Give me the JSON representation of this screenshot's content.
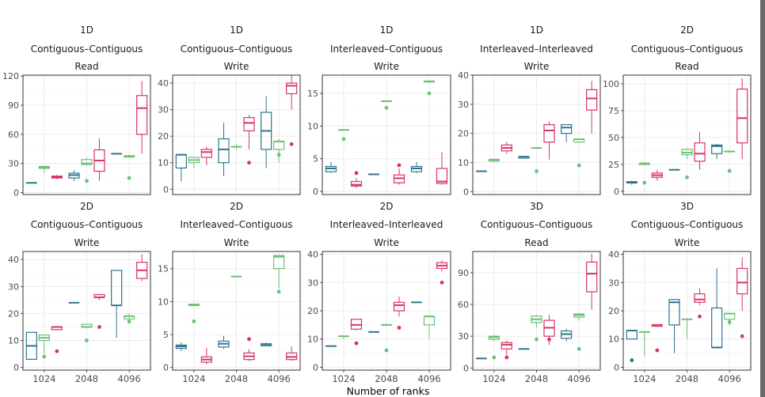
{
  "colors": {
    "blue": "#2e7590",
    "green": "#6cc073",
    "pink": "#d83465",
    "grid": "#ebebeb",
    "frame": "#333333",
    "tick": "#4d4d4d"
  },
  "xlabel": "Number of ranks",
  "chart_data": [
    {
      "type": "box",
      "title": [
        "1D",
        "Contiguous–Contiguous",
        "Read"
      ],
      "categories": [
        "1024",
        "2048",
        "4096"
      ],
      "ylim": [
        -2,
        121
      ],
      "yticks": [
        0,
        30,
        60,
        90,
        120
      ],
      "series": [
        {
          "color": "blue",
          "boxes": [
            [
              10,
              10,
              10,
              10,
              10,
              null
            ],
            [
              12,
              15,
              18,
              20,
              23,
              null
            ],
            [
              40,
              40,
              40,
              40,
              40,
              null
            ]
          ]
        },
        {
          "color": "green",
          "boxes": [
            [
              20,
              25,
              26,
              27,
              27,
              null
            ],
            [
              28,
              29,
              30,
              34,
              36,
              12
            ],
            [
              37,
              37,
              37,
              38,
              38,
              15
            ]
          ]
        },
        {
          "color": "pink",
          "boxes": [
            [
              14,
              15,
              16,
              17,
              18,
              null
            ],
            [
              12,
              22,
              33,
              44,
              56,
              null
            ],
            [
              40,
              60,
              87,
              100,
              115,
              null
            ]
          ]
        }
      ]
    },
    {
      "type": "box",
      "title": [
        "1D",
        "Contiguous–Contiguous",
        "Write"
      ],
      "categories": [
        "1024",
        "2048",
        "4096"
      ],
      "ylim": [
        -2,
        43
      ],
      "yticks": [
        0,
        10,
        20,
        30,
        40
      ],
      "series": [
        {
          "color": "blue",
          "boxes": [
            [
              3,
              8,
              13,
              13,
              13,
              null
            ],
            [
              5,
              10,
              15,
              19,
              25,
              null
            ],
            [
              8,
              15,
              22,
              29,
              35,
              null
            ]
          ]
        },
        {
          "color": "green",
          "boxes": [
            [
              8,
              10,
              11,
              12,
              12,
              null
            ],
            [
              15,
              16,
              16,
              16,
              17,
              null
            ],
            [
              10,
              15,
              18,
              18,
              19,
              13
            ]
          ]
        },
        {
          "color": "pink",
          "boxes": [
            [
              9,
              12,
              14,
              15,
              16,
              null
            ],
            [
              15,
              22,
              25,
              27,
              28,
              10
            ],
            [
              30,
              36,
              39,
              40,
              43,
              17
            ]
          ]
        }
      ]
    },
    {
      "type": "box",
      "title": [
        "1D",
        "Interleaved–Contiguous",
        "Write"
      ],
      "categories": [
        "1024",
        "2048",
        "4096"
      ],
      "ylim": [
        -0.5,
        17.8
      ],
      "yticks": [
        0,
        5,
        10,
        15
      ],
      "series": [
        {
          "color": "blue",
          "boxes": [
            [
              2.8,
              3,
              3.5,
              3.8,
              4.5,
              null
            ],
            [
              2.6,
              2.6,
              2.6,
              2.6,
              2.6,
              null
            ],
            [
              2.8,
              3,
              3.5,
              3.8,
              4.5,
              null
            ]
          ]
        },
        {
          "color": "green",
          "boxes": [
            [
              9.4,
              9.4,
              9.4,
              9.4,
              9.4,
              8
            ],
            [
              13.8,
              13.8,
              13.8,
              13.8,
              13.8,
              12.8
            ],
            [
              16.5,
              16.8,
              16.8,
              16.9,
              17,
              15
            ]
          ]
        },
        {
          "color": "pink",
          "boxes": [
            [
              0.5,
              0.8,
              1,
              1.5,
              2,
              2.8
            ],
            [
              1,
              1.3,
              2,
              2.5,
              3.5,
              4
            ],
            [
              1,
              1.2,
              1.5,
              3.5,
              6,
              null
            ]
          ]
        }
      ]
    },
    {
      "type": "box",
      "title": [
        "1D",
        "Interleaved–Interleaved",
        "Write"
      ],
      "categories": [
        "1024",
        "2048",
        "4096"
      ],
      "ylim": [
        -1,
        40
      ],
      "yticks": [
        0,
        10,
        20,
        30,
        40
      ],
      "series": [
        {
          "color": "blue",
          "boxes": [
            [
              7,
              7,
              7,
              7,
              7,
              null
            ],
            [
              11.5,
              11.5,
              12,
              12,
              12,
              null
            ],
            [
              17,
              20,
              22,
              23,
              23,
              null
            ]
          ]
        },
        {
          "color": "green",
          "boxes": [
            [
              10,
              10.5,
              11,
              11,
              11,
              null
            ],
            [
              15,
              15,
              15,
              15,
              15,
              7
            ],
            [
              17,
              17,
              18,
              18,
              18,
              9
            ]
          ]
        },
        {
          "color": "pink",
          "boxes": [
            [
              13,
              14,
              15,
              16,
              17,
              null
            ],
            [
              11,
              17,
              21,
              23,
              24,
              null
            ],
            [
              20,
              28,
              32,
              35,
              38,
              null
            ]
          ]
        }
      ]
    },
    {
      "type": "box",
      "title": [
        "2D",
        "Contiguous–Contiguous",
        "Read"
      ],
      "categories": [
        "1024",
        "2048",
        "4096"
      ],
      "ylim": [
        -3,
        108
      ],
      "yticks": [
        0,
        25,
        50,
        75,
        100
      ],
      "series": [
        {
          "color": "blue",
          "boxes": [
            [
              6,
              8,
              8,
              9,
              10,
              null
            ],
            [
              20,
              20,
              20,
              20,
              20,
              null
            ],
            [
              30,
              35,
              42,
              43,
              44,
              null
            ]
          ]
        },
        {
          "color": "green",
          "boxes": [
            [
              24,
              25,
              26,
              26,
              27,
              8
            ],
            [
              30,
              34,
              36,
              39,
              40,
              13
            ],
            [
              36,
              37,
              37,
              37,
              38,
              19
            ]
          ]
        },
        {
          "color": "pink",
          "boxes": [
            [
              10,
              13,
              15,
              17,
              20,
              null
            ],
            [
              20,
              28,
              35,
              45,
              55,
              null
            ],
            [
              30,
              45,
              68,
              95,
              105,
              null
            ]
          ]
        }
      ]
    },
    {
      "type": "box",
      "title": [
        "2D",
        "Contiguous–Contiguous",
        "Write"
      ],
      "categories": [
        "1024",
        "2048",
        "4096"
      ],
      "ylim": [
        -1,
        43
      ],
      "yticks": [
        0,
        10,
        20,
        30,
        40
      ],
      "series": [
        {
          "color": "blue",
          "boxes": [
            [
              3,
              3,
              8,
              13,
              13,
              null
            ],
            [
              24,
              24,
              24,
              24,
              24,
              null
            ],
            [
              11,
              23,
              23,
              36,
              36,
              null
            ]
          ]
        },
        {
          "color": "green",
          "boxes": [
            [
              5,
              10,
              11,
              12,
              12,
              4
            ],
            [
              15,
              15,
              15,
              16,
              16,
              10
            ],
            [
              17,
              18,
              19,
              19,
              20,
              17
            ]
          ]
        },
        {
          "color": "pink",
          "boxes": [
            [
              14,
              14,
              15,
              15,
              15,
              6
            ],
            [
              25,
              26,
              26,
              27,
              27,
              15
            ],
            [
              32,
              33,
              36,
              39,
              42,
              null
            ]
          ]
        }
      ]
    },
    {
      "type": "box",
      "title": [
        "2D",
        "Interleaved–Contiguous",
        "Write"
      ],
      "categories": [
        "1024",
        "2048",
        "4096"
      ],
      "ylim": [
        -0.4,
        17.6
      ],
      "yticks": [
        0,
        5,
        10,
        15
      ],
      "series": [
        {
          "color": "blue",
          "boxes": [
            [
              2.5,
              2.9,
              3.2,
              3.4,
              3.8,
              null
            ],
            [
              2.8,
              3.1,
              3.6,
              4,
              4.8,
              null
            ],
            [
              3.2,
              3.3,
              3.4,
              3.6,
              3.8,
              null
            ]
          ]
        },
        {
          "color": "green",
          "boxes": [
            [
              9.4,
              9.4,
              9.5,
              9.6,
              9.7,
              7
            ],
            [
              13.8,
              13.8,
              13.8,
              13.8,
              13.8,
              null
            ],
            [
              12,
              15,
              16.8,
              17,
              17,
              11.5
            ]
          ]
        },
        {
          "color": "pink",
          "boxes": [
            [
              0.5,
              0.8,
              1.2,
              1.6,
              3,
              null
            ],
            [
              1,
              1.2,
              1.7,
              2.2,
              2.8,
              4.3
            ],
            [
              1,
              1.2,
              1.6,
              2.2,
              3.2,
              null
            ]
          ]
        }
      ]
    },
    {
      "type": "box",
      "title": [
        "2D",
        "Interleaved–Interleaved",
        "Write"
      ],
      "categories": [
        "1024",
        "2048",
        "4096"
      ],
      "ylim": [
        -1,
        41
      ],
      "yticks": [
        0,
        10,
        20,
        30,
        40
      ],
      "series": [
        {
          "color": "blue",
          "boxes": [
            [
              7.5,
              7.5,
              7.5,
              7.5,
              7.5,
              null
            ],
            [
              12.5,
              12.5,
              12.5,
              12.5,
              12.5,
              null
            ],
            [
              23,
              23,
              23,
              23,
              23,
              null
            ]
          ]
        },
        {
          "color": "green",
          "boxes": [
            [
              10,
              11,
              11,
              11,
              11,
              null
            ],
            [
              14.5,
              15,
              15,
              15,
              15.5,
              6
            ],
            [
              10,
              15,
              18,
              18,
              18,
              null
            ]
          ]
        },
        {
          "color": "pink",
          "boxes": [
            [
              13,
              13.5,
              15,
              17,
              17,
              8.5
            ],
            [
              18,
              20,
              22,
              23,
              25,
              14
            ],
            [
              34,
              35,
              36,
              37,
              38,
              30
            ]
          ]
        }
      ]
    },
    {
      "type": "box",
      "title": [
        "3D",
        "Contiguous–Contiguous",
        "Read"
      ],
      "categories": [
        "1024",
        "2048",
        "4096"
      ],
      "ylim": [
        -2,
        110
      ],
      "yticks": [
        0,
        30,
        60,
        90
      ],
      "series": [
        {
          "color": "blue",
          "boxes": [
            [
              9,
              9,
              9,
              9,
              9,
              null
            ],
            [
              18,
              18,
              18,
              18,
              18,
              null
            ],
            [
              25,
              28,
              32,
              35,
              37,
              null
            ]
          ]
        },
        {
          "color": "green",
          "boxes": [
            [
              25,
              27,
              29,
              30,
              31,
              10
            ],
            [
              38,
              43,
              46,
              49,
              50,
              27
            ],
            [
              45,
              48,
              50,
              51,
              52,
              18
            ]
          ]
        },
        {
          "color": "pink",
          "boxes": [
            [
              12,
              18,
              22,
              24,
              26,
              10
            ],
            [
              22,
              30,
              38,
              45,
              50,
              27
            ],
            [
              55,
              72,
              89,
              100,
              108,
              null
            ]
          ]
        }
      ]
    },
    {
      "type": "box",
      "title": [
        "3D",
        "Contiguous–Contiguous",
        "Write"
      ],
      "categories": [
        "1024",
        "2048",
        "4096"
      ],
      "ylim": [
        -1,
        41
      ],
      "yticks": [
        0,
        10,
        20,
        30,
        40
      ],
      "series": [
        {
          "color": "blue",
          "boxes": [
            [
              10,
              10,
              13,
              13,
              13,
              2.5
            ],
            [
              5,
              15,
              23,
              24,
              24,
              null
            ],
            [
              7,
              7,
              7,
              21,
              35,
              null
            ]
          ]
        },
        {
          "color": "green",
          "boxes": [
            [
              4,
              12.5,
              12.5,
              12.5,
              12.5,
              null
            ],
            [
              10,
              17,
              17,
              17,
              17,
              null
            ],
            [
              15,
              17,
              19,
              19,
              19,
              16
            ]
          ]
        },
        {
          "color": "pink",
          "boxes": [
            [
              14.5,
              14.5,
              15,
              15,
              15,
              6
            ],
            [
              22,
              23,
              24,
              26,
              28,
              18
            ],
            [
              20,
              26,
              30,
              35,
              39,
              11
            ]
          ]
        }
      ]
    }
  ]
}
